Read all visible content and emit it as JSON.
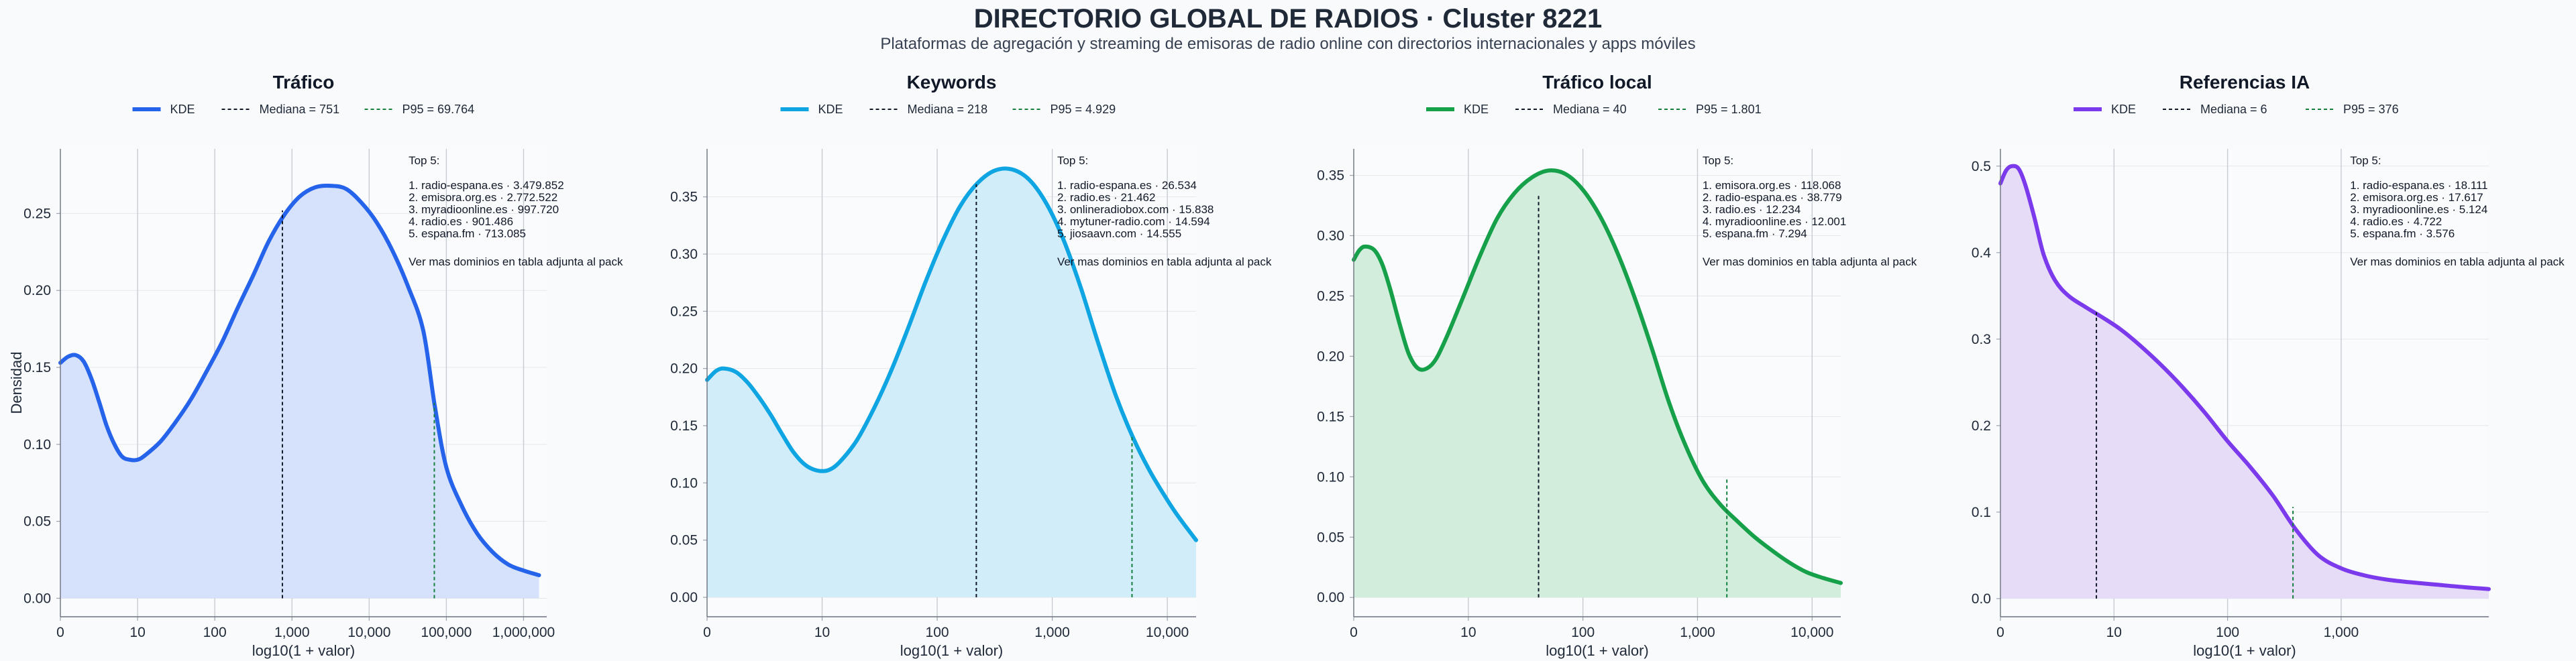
{
  "page": {
    "title": "DIRECTORIO GLOBAL DE RADIOS · Cluster 8221",
    "subtitle": "Plataformas de agregación y streaming de emisoras de radio online con directorios internacionales y apps móviles"
  },
  "chart_data": [
    {
      "type": "area",
      "title": "Tráfico",
      "xlabel": "log10(1 + valor)",
      "ylabel": "Densidad",
      "color": "#2563eb",
      "fill": "#d6e1fb",
      "xlim": [
        0,
        6.3
      ],
      "ylim": [
        -0.012,
        0.292
      ],
      "yticks": [
        0,
        0.05,
        0.1,
        0.15,
        0.2,
        0.25
      ],
      "ytick_labels": [
        "0.00",
        "0.05",
        "0.10",
        "0.15",
        "0.20",
        "0.25"
      ],
      "xticks": [
        0,
        1,
        2,
        3,
        4,
        5,
        6
      ],
      "xtick_labels": [
        "0",
        "10",
        "100",
        "1,000",
        "10,000",
        "100,000",
        "1,000,000"
      ],
      "kde": [
        [
          0,
          0.153
        ],
        [
          0.1,
          0.157
        ],
        [
          0.2,
          0.158
        ],
        [
          0.3,
          0.154
        ],
        [
          0.4,
          0.143
        ],
        [
          0.5,
          0.128
        ],
        [
          0.6,
          0.112
        ],
        [
          0.7,
          0.1
        ],
        [
          0.8,
          0.092
        ],
        [
          0.9,
          0.09
        ],
        [
          1.0,
          0.09
        ],
        [
          1.1,
          0.093
        ],
        [
          1.3,
          0.102
        ],
        [
          1.5,
          0.115
        ],
        [
          1.7,
          0.13
        ],
        [
          1.9,
          0.148
        ],
        [
          2.1,
          0.167
        ],
        [
          2.3,
          0.189
        ],
        [
          2.5,
          0.21
        ],
        [
          2.7,
          0.232
        ],
        [
          2.9,
          0.249
        ],
        [
          3.1,
          0.261
        ],
        [
          3.3,
          0.267
        ],
        [
          3.5,
          0.268
        ],
        [
          3.7,
          0.266
        ],
        [
          3.9,
          0.257
        ],
        [
          4.1,
          0.244
        ],
        [
          4.3,
          0.226
        ],
        [
          4.5,
          0.203
        ],
        [
          4.7,
          0.174
        ],
        [
          4.85,
          0.125
        ],
        [
          5.0,
          0.085
        ],
        [
          5.2,
          0.06
        ],
        [
          5.4,
          0.042
        ],
        [
          5.6,
          0.03
        ],
        [
          5.8,
          0.022
        ],
        [
          6.0,
          0.018
        ],
        [
          6.2,
          0.015
        ]
      ],
      "median": {
        "label": "Mediana = 751",
        "x": 2.876,
        "y": 0.252
      },
      "p95": {
        "label": "P95 = 69.764",
        "x": 4.844,
        "y": 0.127
      },
      "legend": {
        "kde": "KDE"
      },
      "top5": {
        "header": "Top 5:",
        "items": [
          "1. radio-espana.es · 3.479.852",
          "2. emisora.org.es · 2.772.522",
          "3. myradioonline.es · 997.720",
          "4. radio.es · 901.486",
          "5. espana.fm · 713.085"
        ],
        "footer": "Ver mas dominios en tabla adjunta al pack"
      }
    },
    {
      "type": "area",
      "title": "Keywords",
      "xlabel": "log10(1 + valor)",
      "ylabel": "",
      "color": "#0ea5e2",
      "fill": "#d2edfa",
      "xlim": [
        0,
        4.25
      ],
      "ylim": [
        -0.017,
        0.392
      ],
      "yticks": [
        0,
        0.05,
        0.1,
        0.15,
        0.2,
        0.25,
        0.3,
        0.35
      ],
      "ytick_labels": [
        "0.00",
        "0.05",
        "0.10",
        "0.15",
        "0.20",
        "0.25",
        "0.30",
        "0.35"
      ],
      "xticks": [
        0,
        1,
        2,
        3,
        4
      ],
      "xtick_labels": [
        "0",
        "10",
        "100",
        "1,000",
        "10,000"
      ],
      "kde": [
        [
          0,
          0.19
        ],
        [
          0.08,
          0.198
        ],
        [
          0.15,
          0.2
        ],
        [
          0.25,
          0.197
        ],
        [
          0.35,
          0.188
        ],
        [
          0.45,
          0.175
        ],
        [
          0.55,
          0.16
        ],
        [
          0.65,
          0.143
        ],
        [
          0.75,
          0.127
        ],
        [
          0.85,
          0.116
        ],
        [
          0.95,
          0.111
        ],
        [
          1.05,
          0.111
        ],
        [
          1.15,
          0.118
        ],
        [
          1.3,
          0.137
        ],
        [
          1.45,
          0.165
        ],
        [
          1.6,
          0.198
        ],
        [
          1.75,
          0.236
        ],
        [
          1.9,
          0.276
        ],
        [
          2.05,
          0.312
        ],
        [
          2.2,
          0.342
        ],
        [
          2.35,
          0.362
        ],
        [
          2.5,
          0.373
        ],
        [
          2.65,
          0.374
        ],
        [
          2.8,
          0.365
        ],
        [
          2.95,
          0.344
        ],
        [
          3.1,
          0.312
        ],
        [
          3.25,
          0.27
        ],
        [
          3.4,
          0.222
        ],
        [
          3.55,
          0.177
        ],
        [
          3.7,
          0.14
        ],
        [
          3.85,
          0.11
        ],
        [
          4.0,
          0.085
        ],
        [
          4.1,
          0.07
        ],
        [
          4.25,
          0.05
        ]
      ],
      "median": {
        "label": "Mediana = 218",
        "x": 2.34,
        "y": 0.361
      },
      "p95": {
        "label": "P95 = 4.929",
        "x": 3.693,
        "y": 0.142
      },
      "legend": {
        "kde": "KDE"
      },
      "top5": {
        "header": "Top 5:",
        "items": [
          "1. radio-espana.es · 26.534",
          "2. radio.es · 21.462",
          "3. onlineradiobox.com · 15.838",
          "4. mytuner-radio.com · 14.594",
          "5. jiosaavn.com · 14.555"
        ],
        "footer": "Ver mas dominios en tabla adjunta al pack"
      }
    },
    {
      "type": "area",
      "title": "Tráfico local",
      "xlabel": "log10(1 + valor)",
      "ylabel": "",
      "color": "#16a04a",
      "fill": "#d3eddc",
      "xlim": [
        0,
        4.25
      ],
      "ylim": [
        -0.016,
        0.372
      ],
      "yticks": [
        0,
        0.05,
        0.1,
        0.15,
        0.2,
        0.25,
        0.3,
        0.35
      ],
      "ytick_labels": [
        "0.00",
        "0.05",
        "0.10",
        "0.15",
        "0.20",
        "0.25",
        "0.30",
        "0.35"
      ],
      "xticks": [
        0,
        1,
        2,
        3,
        4
      ],
      "xtick_labels": [
        "0",
        "10",
        "100",
        "1,000",
        "10,000"
      ],
      "kde": [
        [
          0,
          0.28
        ],
        [
          0.05,
          0.288
        ],
        [
          0.1,
          0.291
        ],
        [
          0.18,
          0.288
        ],
        [
          0.25,
          0.276
        ],
        [
          0.32,
          0.255
        ],
        [
          0.4,
          0.227
        ],
        [
          0.48,
          0.202
        ],
        [
          0.56,
          0.19
        ],
        [
          0.64,
          0.19
        ],
        [
          0.72,
          0.198
        ],
        [
          0.82,
          0.218
        ],
        [
          0.95,
          0.248
        ],
        [
          1.1,
          0.283
        ],
        [
          1.25,
          0.314
        ],
        [
          1.4,
          0.335
        ],
        [
          1.55,
          0.348
        ],
        [
          1.7,
          0.354
        ],
        [
          1.85,
          0.351
        ],
        [
          2.0,
          0.338
        ],
        [
          2.15,
          0.316
        ],
        [
          2.3,
          0.286
        ],
        [
          2.45,
          0.249
        ],
        [
          2.6,
          0.207
        ],
        [
          2.75,
          0.162
        ],
        [
          2.9,
          0.125
        ],
        [
          3.05,
          0.096
        ],
        [
          3.2,
          0.077
        ],
        [
          3.35,
          0.063
        ],
        [
          3.5,
          0.05
        ],
        [
          3.65,
          0.039
        ],
        [
          3.8,
          0.029
        ],
        [
          3.95,
          0.021
        ],
        [
          4.1,
          0.016
        ],
        [
          4.25,
          0.012
        ]
      ],
      "median": {
        "label": "Mediana = 40",
        "x": 1.613,
        "y": 0.335
      },
      "p95": {
        "label": "P95 = 1.801",
        "x": 3.256,
        "y": 0.1
      },
      "legend": {
        "kde": "KDE"
      },
      "top5": {
        "header": "Top 5:",
        "items": [
          "1. emisora.org.es · 118.068",
          "2. radio-espana.es · 38.779",
          "3. radio.es · 12.234",
          "4. myradioonline.es · 12.001",
          "5. espana.fm · 7.294"
        ],
        "footer": "Ver mas dominios en tabla adjunta al pack"
      }
    },
    {
      "type": "area",
      "title": "Referencias IA",
      "xlabel": "log10(1 + valor)",
      "ylabel": "",
      "color": "#7c3aed",
      "fill": "#e6dcf8",
      "xlim": [
        0,
        4.3
      ],
      "ylim": [
        -0.021,
        0.52
      ],
      "yticks": [
        0,
        0.1,
        0.2,
        0.3,
        0.4,
        0.5
      ],
      "ytick_labels": [
        "0.0",
        "0.1",
        "0.2",
        "0.3",
        "0.4",
        "0.5"
      ],
      "xticks": [
        0,
        1,
        2,
        3
      ],
      "xtick_labels": [
        "0",
        "10",
        "100",
        "1,000"
      ],
      "kde": [
        [
          0,
          0.48
        ],
        [
          0.05,
          0.495
        ],
        [
          0.1,
          0.5
        ],
        [
          0.16,
          0.497
        ],
        [
          0.22,
          0.478
        ],
        [
          0.3,
          0.44
        ],
        [
          0.38,
          0.398
        ],
        [
          0.48,
          0.368
        ],
        [
          0.6,
          0.35
        ],
        [
          0.75,
          0.337
        ],
        [
          0.9,
          0.325
        ],
        [
          1.05,
          0.312
        ],
        [
          1.2,
          0.296
        ],
        [
          1.4,
          0.272
        ],
        [
          1.6,
          0.245
        ],
        [
          1.8,
          0.215
        ],
        [
          2.0,
          0.182
        ],
        [
          2.2,
          0.152
        ],
        [
          2.4,
          0.119
        ],
        [
          2.6,
          0.08
        ],
        [
          2.8,
          0.05
        ],
        [
          3.0,
          0.035
        ],
        [
          3.2,
          0.027
        ],
        [
          3.4,
          0.022
        ],
        [
          3.6,
          0.019
        ],
        [
          3.85,
          0.016
        ],
        [
          4.1,
          0.013
        ],
        [
          4.3,
          0.011
        ]
      ],
      "median": {
        "label": "Mediana = 6",
        "x": 0.845,
        "y": 0.331
      },
      "p95": {
        "label": "P95 = 376",
        "x": 2.576,
        "y": 0.106
      },
      "legend": {
        "kde": "KDE"
      },
      "top5": {
        "header": "Top 5:",
        "items": [
          "1. radio-espana.es · 18.111",
          "2. emisora.org.es · 17.617",
          "3. myradioonline.es · 5.124",
          "4. radio.es · 4.722",
          "5. espana.fm · 3.576"
        ],
        "footer": "Ver mas dominios en tabla adjunta al pack"
      }
    }
  ]
}
